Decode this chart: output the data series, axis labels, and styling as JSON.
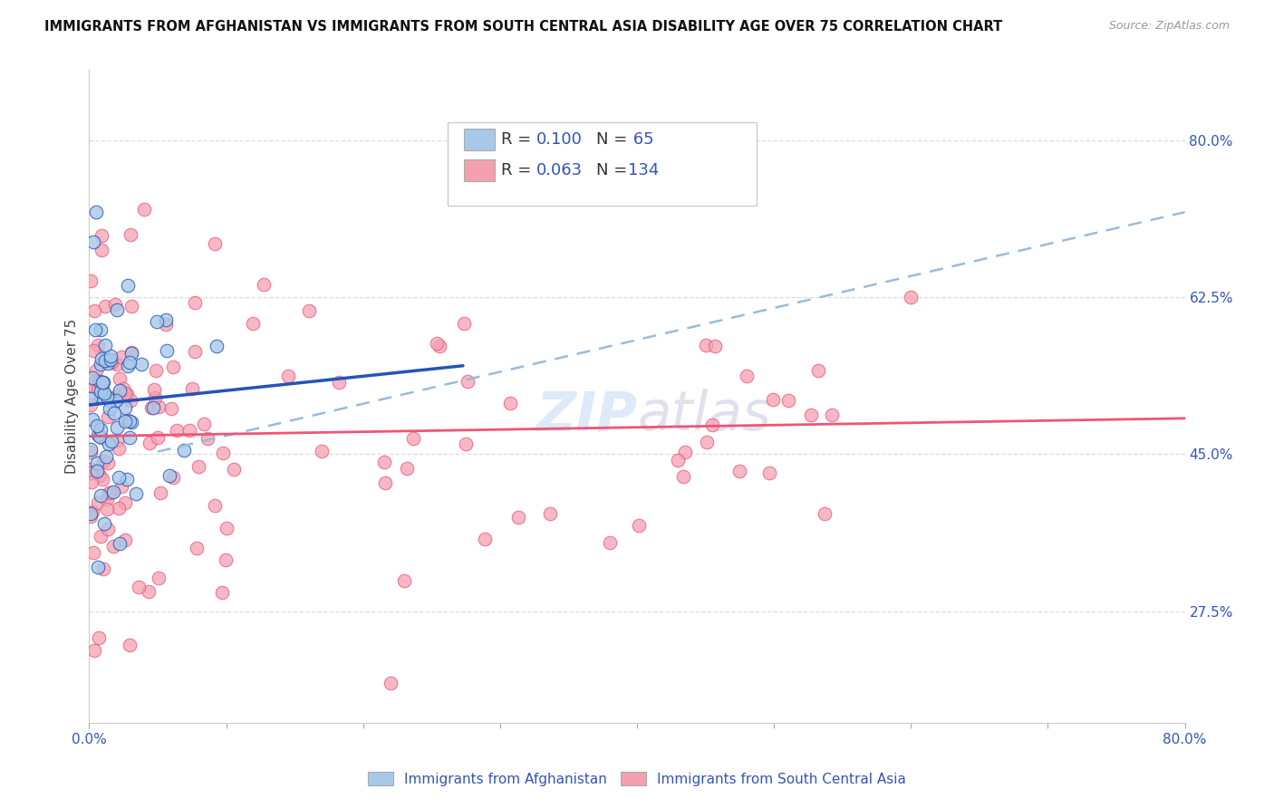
{
  "title": "IMMIGRANTS FROM AFGHANISTAN VS IMMIGRANTS FROM SOUTH CENTRAL ASIA DISABILITY AGE OVER 75 CORRELATION CHART",
  "source": "Source: ZipAtlas.com",
  "ylabel": "Disability Age Over 75",
  "xmin": 0.0,
  "xmax": 0.8,
  "ymin": 0.15,
  "ymax": 0.88,
  "right_yticks": [
    0.275,
    0.45,
    0.625,
    0.8
  ],
  "right_yticklabels": [
    "27.5%",
    "45.0%",
    "62.5%",
    "80.0%"
  ],
  "legend1_R": "0.100",
  "legend1_N": "65",
  "legend2_R": "0.063",
  "legend2_N": "134",
  "legend1_label": "Immigrants from Afghanistan",
  "legend2_label": "Immigrants from South Central Asia",
  "color_blue": "#A8C8E8",
  "color_pink": "#F4A0B0",
  "color_blue_line": "#2255BB",
  "color_pink_line": "#EE5577",
  "color_dashed_line": "#99BBDD",
  "watermark_color": "#AACCEE",
  "title_color": "#111111",
  "axis_label_color": "#3355BB",
  "afg_blue_line_start_y": 0.5,
  "afg_blue_line_end_y": 0.545,
  "sca_pink_line_start_y": 0.47,
  "sca_pink_line_end_y": 0.49,
  "dashed_line_start_y": 0.435,
  "dashed_line_end_y": 0.72
}
